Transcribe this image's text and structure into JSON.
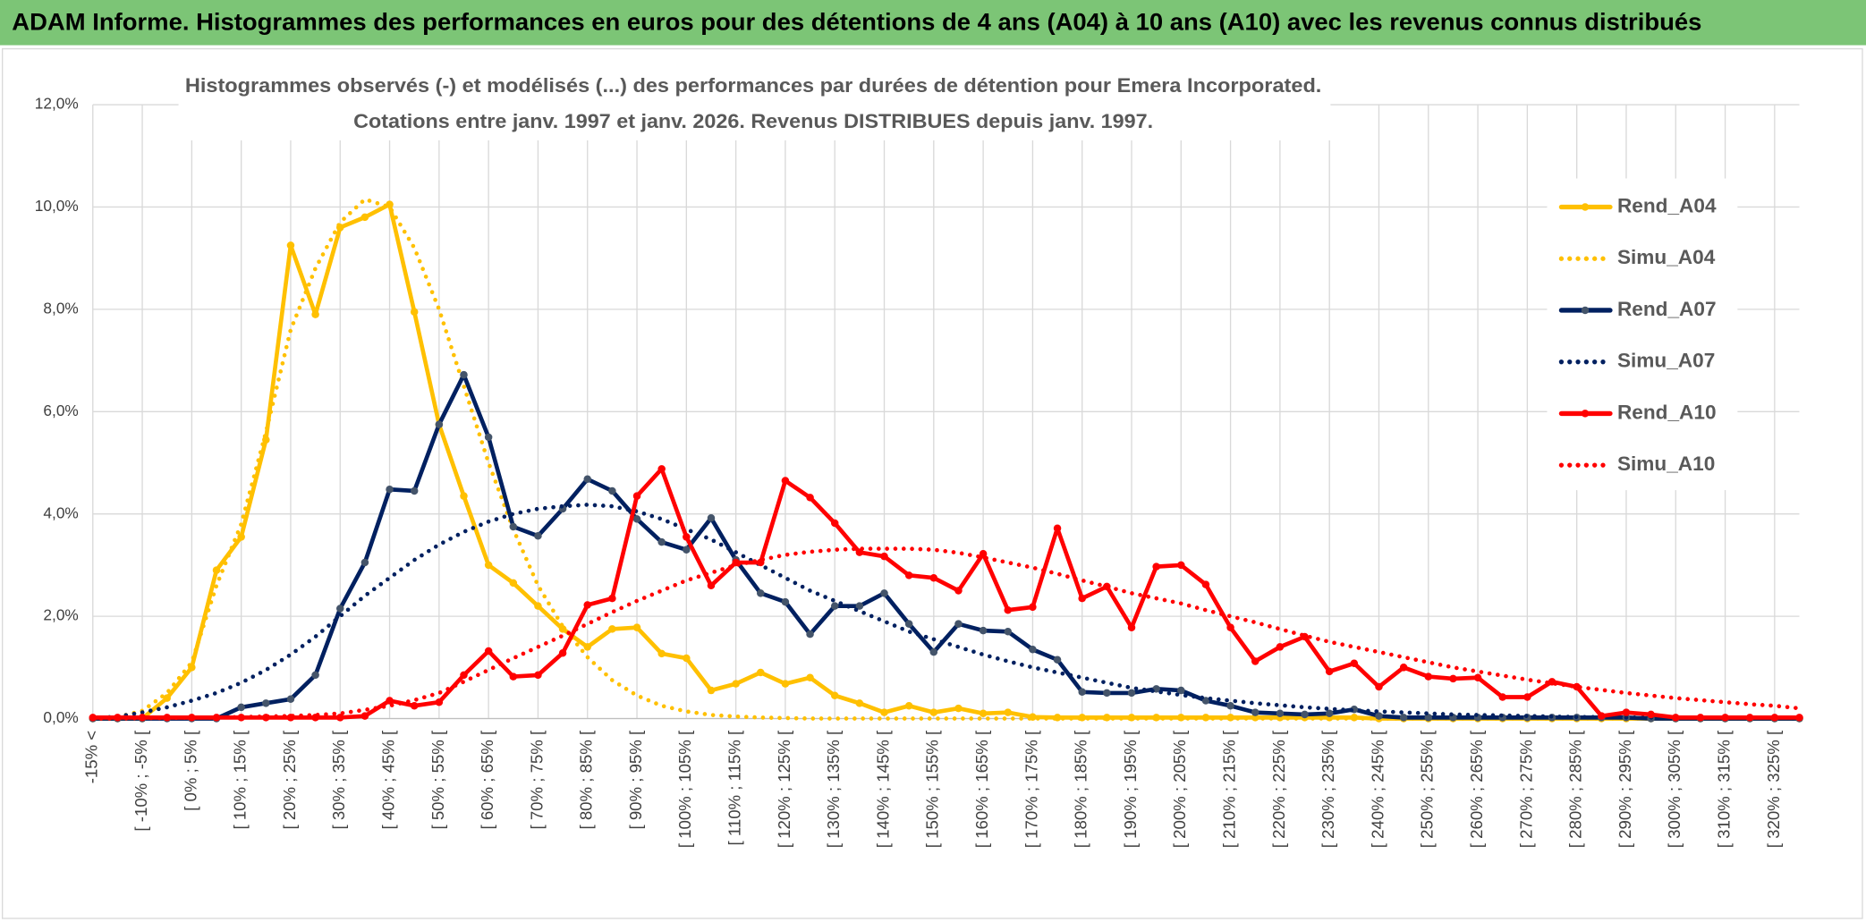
{
  "header": {
    "title": "ADAM Informe. Histogrammes des performances en euros pour des détentions de 4 ans (A04) à 10 ans (A10) avec les revenus connus distribués"
  },
  "chart_data": {
    "type": "line",
    "title": "Histogrammes observés (-) et modélisés (...) des performances par durées de détention pour Emera Incorporated.",
    "subtitle": "Cotations entre janv. 1997 et janv. 2026. Revenus DISTRIBUES depuis janv. 1997.",
    "categories": [
      "-15% <",
      null,
      "[ -10% ; -5% [",
      null,
      "[ 0% ; 5% [",
      null,
      "[ 10% ; 15% [",
      null,
      "[ 20% ; 25% [",
      null,
      "[ 30% ; 35% [",
      null,
      "[ 40% ; 45% [",
      null,
      "[ 50% ; 55% [",
      null,
      "[ 60% ; 65% [",
      null,
      "[ 70% ; 75% [",
      null,
      "[ 80% ; 85% [",
      null,
      "[ 90% ; 95% [",
      null,
      "[ 100% ; 105% [",
      null,
      "[ 110% ; 115% [",
      null,
      "[ 120% ; 125% [",
      null,
      "[ 130% ; 135% [",
      null,
      "[ 140% ; 145% [",
      null,
      "[ 150% ; 155% [",
      null,
      "[ 160% ; 165% [",
      null,
      "[ 170% ; 175% [",
      null,
      "[ 180% ; 185% [",
      null,
      "[ 190% ; 195% [",
      null,
      "[ 200% ; 205% [",
      null,
      "[ 210% ; 215% [",
      null,
      "[ 220% ; 225% [",
      null,
      "[ 230% ; 235% [",
      null,
      "[ 240% ; 245% [",
      null,
      "[ 250% ; 255% [",
      null,
      "[ 260% ; 265% [",
      null,
      "[ 270% ; 275% [",
      null,
      "[ 280% ; 285% [",
      null,
      "[ 290% ; 295% [",
      null,
      "[ 300% ; 305% [",
      null,
      "[ 310% ; 315% [",
      null,
      "[ 320% ; 325% [",
      null
    ],
    "series": [
      {
        "name": "Rend_A04",
        "color": "#FFC000",
        "marker_color": "#FFC000",
        "style": "solid",
        "values": [
          0,
          0,
          0,
          0.4,
          1.0,
          2.9,
          3.55,
          5.45,
          9.25,
          7.9,
          9.6,
          9.8,
          10.05,
          7.95,
          5.75,
          4.35,
          3.0,
          2.65,
          2.2,
          1.75,
          1.4,
          1.75,
          1.78,
          1.27,
          1.18,
          0.55,
          0.68,
          0.9,
          0.68,
          0.8,
          0.45,
          0.3,
          0.12,
          0.25,
          0.12,
          0.2,
          0.1,
          0.12,
          0.03,
          0.02,
          0.02,
          0.02,
          0.02,
          0.02,
          0.02,
          0.02,
          0.02,
          0.02,
          0.02,
          0.02,
          0.02,
          0.02,
          0,
          0,
          0,
          0,
          0,
          0,
          0,
          0,
          0,
          0,
          0,
          0,
          0,
          0,
          0,
          0,
          0,
          0
        ]
      },
      {
        "name": "Simu_A04",
        "color": "#FFC000",
        "style": "dotted",
        "values": [
          0,
          0.03,
          0.15,
          0.5,
          1.1,
          2.6,
          3.8,
          5.6,
          7.6,
          8.8,
          9.7,
          10.15,
          10.0,
          9.2,
          8.0,
          6.5,
          5.0,
          3.7,
          2.6,
          1.8,
          1.2,
          0.75,
          0.45,
          0.25,
          0.14,
          0.07,
          0.04,
          0.02,
          0.01,
          0,
          0,
          0,
          0,
          0,
          0,
          0,
          0,
          0,
          0,
          0,
          0,
          0,
          0,
          0,
          0,
          0,
          0,
          0,
          0,
          0,
          0,
          0,
          0,
          0,
          0,
          0,
          0,
          0,
          0,
          0,
          0,
          0,
          0,
          0,
          0,
          0,
          0,
          0,
          0,
          0
        ]
      },
      {
        "name": "Rend_A07",
        "color": "#002060",
        "marker_color": "#44546A",
        "style": "solid",
        "values": [
          0,
          0,
          0,
          0,
          0,
          0,
          0.22,
          0.3,
          0.38,
          0.85,
          2.15,
          3.05,
          4.48,
          4.45,
          5.75,
          6.72,
          5.5,
          3.75,
          3.57,
          4.1,
          4.68,
          4.45,
          3.9,
          3.45,
          3.3,
          3.92,
          3.1,
          2.45,
          2.28,
          1.65,
          2.2,
          2.2,
          2.45,
          1.85,
          1.3,
          1.85,
          1.72,
          1.7,
          1.35,
          1.15,
          0.52,
          0.5,
          0.5,
          0.58,
          0.55,
          0.35,
          0.25,
          0.12,
          0.1,
          0.08,
          0.1,
          0.18,
          0.05,
          0.02,
          0.02,
          0.02,
          0.02,
          0.02,
          0.02,
          0.02,
          0.02,
          0.02,
          0.02,
          0,
          0,
          0,
          0,
          0,
          0,
          0
        ]
      },
      {
        "name": "Simu_A07",
        "color": "#002060",
        "style": "dotted",
        "values": [
          0,
          0.04,
          0.12,
          0.22,
          0.35,
          0.5,
          0.7,
          0.95,
          1.25,
          1.6,
          2.0,
          2.4,
          2.75,
          3.1,
          3.4,
          3.65,
          3.85,
          4.0,
          4.1,
          4.15,
          4.18,
          4.15,
          4.05,
          3.9,
          3.7,
          3.5,
          3.25,
          3.0,
          2.75,
          2.5,
          2.3,
          2.1,
          1.9,
          1.7,
          1.55,
          1.4,
          1.25,
          1.12,
          1.0,
          0.9,
          0.8,
          0.7,
          0.6,
          0.53,
          0.46,
          0.4,
          0.35,
          0.3,
          0.26,
          0.22,
          0.19,
          0.16,
          0.14,
          0.12,
          0.1,
          0.08,
          0.07,
          0.06,
          0.05,
          0.04,
          0.03,
          0.03,
          0.02,
          0.02,
          0.01,
          0.01,
          0.01,
          0.01,
          0.01,
          0
        ]
      },
      {
        "name": "Rend_A10",
        "color": "#FF0000",
        "marker_color": "#FF0000",
        "style": "solid",
        "values": [
          0.02,
          0.02,
          0.02,
          0.02,
          0.02,
          0.02,
          0.02,
          0.02,
          0.02,
          0.02,
          0.02,
          0.05,
          0.35,
          0.25,
          0.32,
          0.85,
          1.32,
          0.82,
          0.85,
          1.28,
          2.22,
          2.35,
          4.35,
          4.88,
          3.55,
          2.6,
          3.05,
          3.05,
          4.65,
          4.32,
          3.82,
          3.25,
          3.17,
          2.8,
          2.75,
          2.5,
          3.22,
          2.12,
          2.18,
          3.72,
          2.35,
          2.58,
          1.78,
          2.97,
          3.0,
          2.62,
          1.78,
          1.12,
          1.4,
          1.6,
          0.92,
          1.08,
          0.62,
          1.0,
          0.82,
          0.78,
          0.8,
          0.42,
          0.42,
          0.72,
          0.62,
          0.05,
          0.12,
          0.08,
          0.02,
          0.02,
          0.02,
          0.02,
          0.02,
          0.02
        ]
      },
      {
        "name": "Simu_A10",
        "color": "#FF0000",
        "style": "dotted",
        "values": [
          0,
          0,
          0.01,
          0.01,
          0.02,
          0.02,
          0.03,
          0.04,
          0.05,
          0.07,
          0.1,
          0.17,
          0.25,
          0.36,
          0.5,
          0.72,
          0.95,
          1.18,
          1.4,
          1.62,
          1.85,
          2.08,
          2.3,
          2.5,
          2.7,
          2.85,
          3.0,
          3.1,
          3.2,
          3.26,
          3.3,
          3.32,
          3.32,
          3.32,
          3.3,
          3.24,
          3.15,
          3.05,
          2.95,
          2.83,
          2.7,
          2.58,
          2.45,
          2.35,
          2.25,
          2.12,
          2.0,
          1.88,
          1.75,
          1.62,
          1.5,
          1.4,
          1.3,
          1.2,
          1.1,
          1.0,
          0.92,
          0.84,
          0.76,
          0.69,
          0.62,
          0.56,
          0.5,
          0.45,
          0.4,
          0.36,
          0.32,
          0.28,
          0.25,
          0.2
        ]
      }
    ],
    "ylim": [
      0,
      12
    ],
    "yticks": [
      {
        "value": 0,
        "label": "0,0%"
      },
      {
        "value": 2,
        "label": "2,0%"
      },
      {
        "value": 4,
        "label": "4,0%"
      },
      {
        "value": 6,
        "label": "6,0%"
      },
      {
        "value": 8,
        "label": "8,0%"
      },
      {
        "value": 10,
        "label": "10,0%"
      },
      {
        "value": 12,
        "label": "12,0%"
      }
    ],
    "grid": true,
    "legend": "right"
  }
}
